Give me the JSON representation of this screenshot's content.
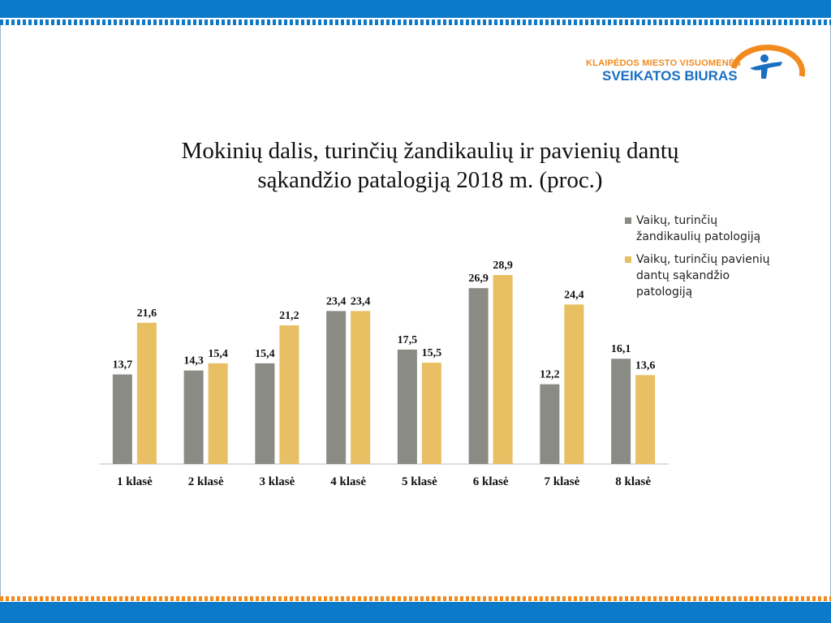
{
  "logo": {
    "line1": "KLAIPĖDOS MIESTO VISUOMENĖS",
    "line2": "SVEIKATOS BIURAS"
  },
  "colors": {
    "series1": "#8b8b85",
    "series2": "#e8bf63",
    "brand_blue": "#0c79c9",
    "brand_orange": "#f28a1e"
  },
  "chart_data": {
    "type": "bar",
    "title_line1": "Mokinių dalis, turinčių žandikaulių ir pavienių dantų",
    "title_line2": "sąkandžio patalogiją 2018 m. (proc.)",
    "categories": [
      "1 klasė",
      "2 klasė",
      "3 klasė",
      "4 klasė",
      "5 klasė",
      "6 klasė",
      "7 klasė",
      "8 klasė"
    ],
    "series": [
      {
        "name": "Vaikų, turinčių žandikaulių patologiją",
        "name_line1": "Vaikų, turinčių",
        "name_line2": "žandikaulių patologiją",
        "values": [
          13.7,
          14.3,
          15.4,
          23.4,
          17.5,
          26.9,
          12.2,
          16.1
        ],
        "labels": [
          "13,7",
          "14,3",
          "15,4",
          "23,4",
          "17,5",
          "26,9",
          "12,2",
          "16,1"
        ]
      },
      {
        "name": "Vaikų, turinčių pavienių dantų sąkandžio patologiją",
        "name_line1": "Vaikų, turinčių pavienių",
        "name_line2": "dantų sąkandžio",
        "name_line3": "patologiją",
        "values": [
          21.6,
          15.4,
          21.2,
          23.4,
          15.5,
          28.9,
          24.4,
          13.6
        ],
        "labels": [
          "21,6",
          "15,4",
          "21,2",
          "23,4",
          "15,5",
          "28,9",
          "24,4",
          "13,6"
        ]
      }
    ],
    "ylim": [
      0,
      30
    ],
    "legend_position": "right",
    "grid": false
  }
}
